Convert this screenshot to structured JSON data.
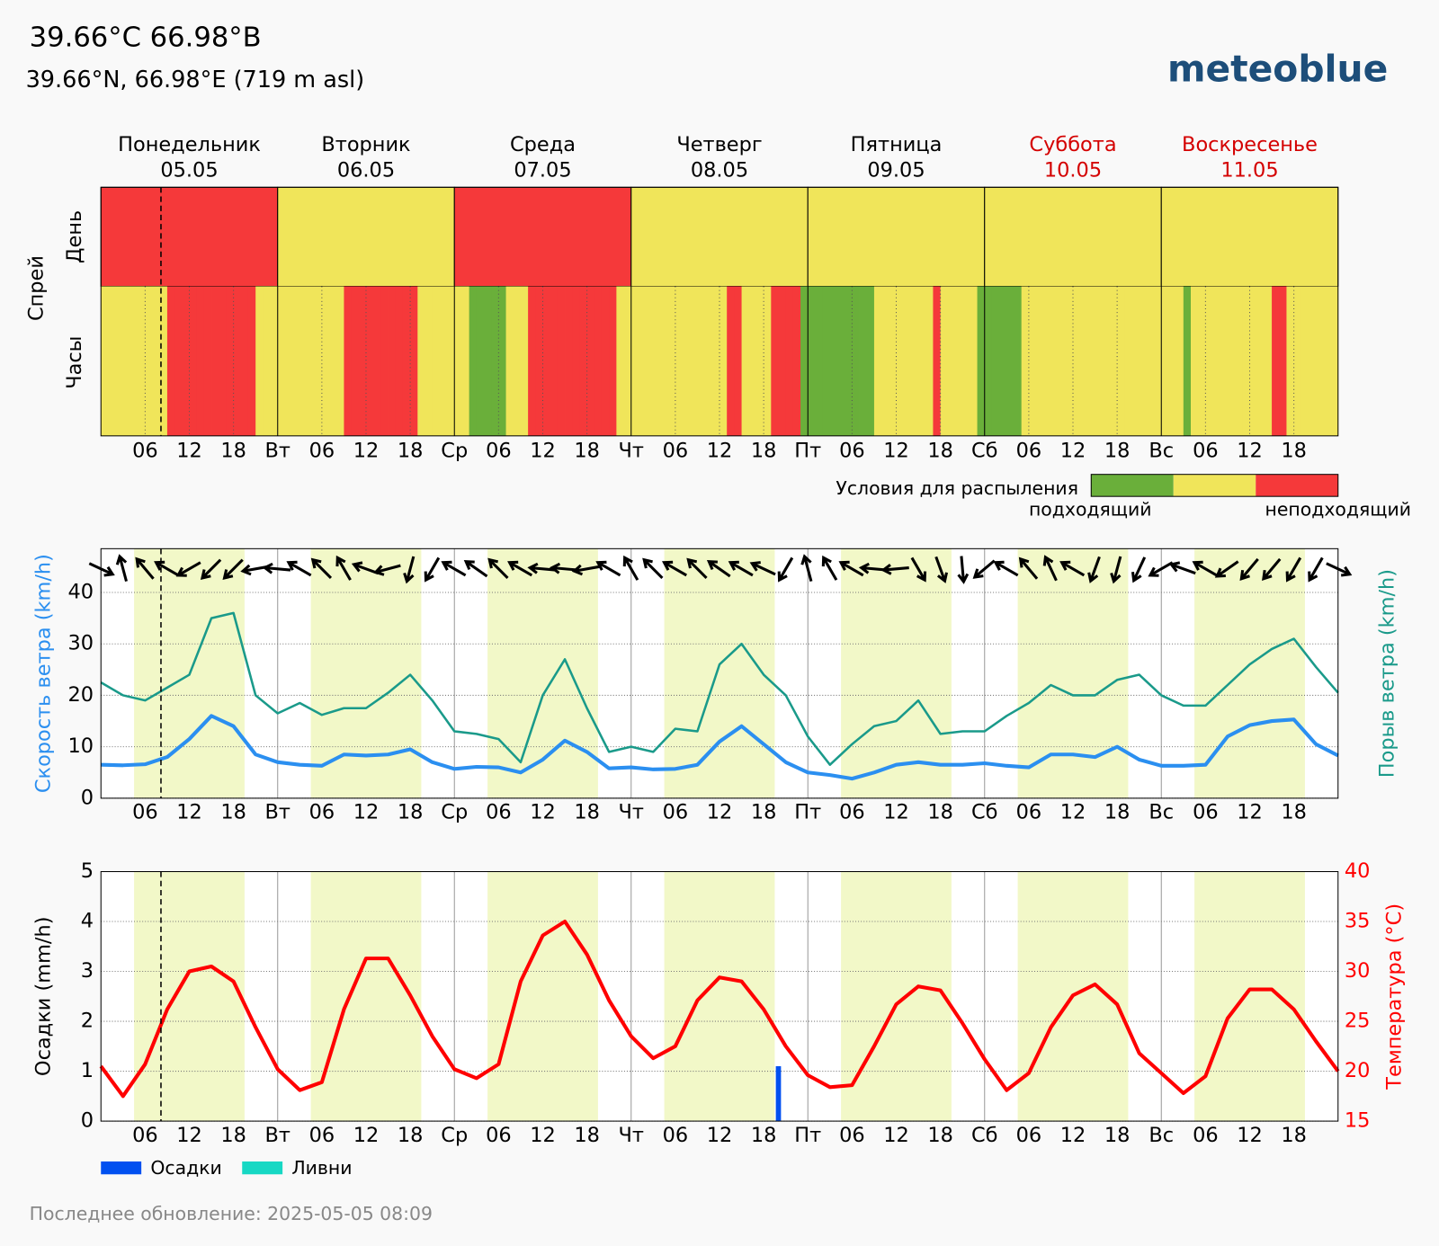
{
  "header": {
    "title": "39.66°C 66.98°B",
    "subtitle": "39.66°N, 66.98°E (719 m asl)",
    "logo": "meteoblue"
  },
  "footer": "Последнее обновление: 2025-05-05 08:09",
  "days": [
    {
      "name": "Понедельник",
      "date": "05.05",
      "color": "#000000"
    },
    {
      "name": "Вторник",
      "date": "06.05",
      "color": "#000000"
    },
    {
      "name": "Среда",
      "date": "07.05",
      "color": "#000000"
    },
    {
      "name": "Четверг",
      "date": "08.05",
      "color": "#000000"
    },
    {
      "name": "Пятница",
      "date": "09.05",
      "color": "#000000"
    },
    {
      "name": "Суббота",
      "date": "10.05",
      "color": "#d40000"
    },
    {
      "name": "Воскресенье",
      "date": "11.05",
      "color": "#d40000"
    }
  ],
  "x_axis": {
    "xlim": [
      0,
      168
    ],
    "xticks": [
      {
        "value": 6,
        "label": "06"
      },
      {
        "value": 12,
        "label": "12"
      },
      {
        "value": 18,
        "label": "18"
      },
      {
        "value": 24,
        "label": "Вт"
      },
      {
        "value": 30,
        "label": "06"
      },
      {
        "value": 36,
        "label": "12"
      },
      {
        "value": 42,
        "label": "18"
      },
      {
        "value": 48,
        "label": "Ср"
      },
      {
        "value": 54,
        "label": "06"
      },
      {
        "value": 60,
        "label": "12"
      },
      {
        "value": 66,
        "label": "18"
      },
      {
        "value": 72,
        "label": "Чт"
      },
      {
        "value": 78,
        "label": "06"
      },
      {
        "value": 84,
        "label": "12"
      },
      {
        "value": 90,
        "label": "18"
      },
      {
        "value": 96,
        "label": "Пт"
      },
      {
        "value": 102,
        "label": "06"
      },
      {
        "value": 108,
        "label": "12"
      },
      {
        "value": 114,
        "label": "18"
      },
      {
        "value": 120,
        "label": "Сб"
      },
      {
        "value": 126,
        "label": "06"
      },
      {
        "value": 132,
        "label": "12"
      },
      {
        "value": 138,
        "label": "18"
      },
      {
        "value": 144,
        "label": "Вс"
      },
      {
        "value": 150,
        "label": "06"
      },
      {
        "value": 156,
        "label": "12"
      },
      {
        "value": 162,
        "label": "18"
      }
    ]
  },
  "now": 8.15,
  "daylight": [
    4.5,
    19.5
  ],
  "chart_data": [
    {
      "type": "spray",
      "title": "Спрей",
      "row_labels": [
        "День",
        "Часы"
      ],
      "level_colors": [
        "#6aaf3a",
        "#f0e55a",
        "#f5393a"
      ],
      "day_values": [
        2,
        1,
        2,
        1,
        1,
        1,
        1
      ],
      "hour_values": [
        1,
        1,
        1,
        1,
        1,
        1,
        1,
        1,
        1,
        2,
        2,
        2,
        2,
        2,
        2,
        2,
        2,
        2,
        2,
        2,
        2,
        1,
        1,
        1,
        1,
        1,
        1,
        1,
        1,
        1,
        1,
        1,
        1,
        2,
        2,
        2,
        2,
        2,
        2,
        2,
        2,
        2,
        2,
        1,
        1,
        1,
        1,
        1,
        1,
        1,
        0,
        0,
        0,
        0,
        0,
        1,
        1,
        1,
        2,
        2,
        2,
        2,
        2,
        2,
        2,
        2,
        2,
        2,
        2,
        2,
        1,
        1,
        1,
        1,
        1,
        1,
        1,
        1,
        1,
        1,
        1,
        1,
        1,
        1,
        1,
        2,
        2,
        1,
        1,
        1,
        1,
        2,
        2,
        2,
        2,
        0,
        0,
        0,
        0,
        0,
        0,
        0,
        0,
        0,
        0,
        1,
        1,
        1,
        1,
        1,
        1,
        1,
        1,
        2,
        1,
        1,
        1,
        1,
        1,
        0,
        0,
        0,
        0,
        0,
        0,
        1,
        1,
        1,
        1,
        1,
        1,
        1,
        1,
        1,
        1,
        1,
        1,
        1,
        1,
        1,
        1,
        1,
        1,
        1,
        1,
        1,
        1,
        0,
        1,
        1,
        1,
        1,
        1,
        1,
        1,
        1,
        1,
        1,
        1,
        2,
        2,
        1,
        1,
        1,
        1,
        1,
        1,
        1
      ],
      "legend_title": "Условия для распыления",
      "legend_labels": [
        "подходящий",
        "неподходящий"
      ]
    },
    {
      "type": "wind",
      "x": [
        0,
        3,
        6,
        9,
        12,
        15,
        18,
        21,
        24,
        27,
        30,
        33,
        36,
        39,
        42,
        45,
        48,
        51,
        54,
        57,
        60,
        63,
        66,
        69,
        72,
        75,
        78,
        81,
        84,
        87,
        90,
        93,
        96,
        99,
        102,
        105,
        108,
        111,
        114,
        117,
        120,
        123,
        126,
        129,
        132,
        135,
        138,
        141,
        144,
        147,
        150,
        153,
        156,
        159,
        162,
        165,
        168
      ],
      "ylim": [
        0,
        48.5
      ],
      "yticks": [
        0,
        10,
        20,
        30,
        40
      ],
      "grid": true,
      "series": [
        {
          "name": "Скорость ветра (km/h)",
          "color": "#2b8ff0",
          "values": [
            6.5,
            6.4,
            6.6,
            8.0,
            11.5,
            16.0,
            14.0,
            8.5,
            7.0,
            6.5,
            6.3,
            8.5,
            8.3,
            8.5,
            9.5,
            7.0,
            5.7,
            6.1,
            6.0,
            5.0,
            7.5,
            11.2,
            9.0,
            5.8,
            6.0,
            5.6,
            5.7,
            6.5,
            11.0,
            14.0,
            10.5,
            7.0,
            5.0,
            4.5,
            3.8,
            5.0,
            6.5,
            7.0,
            6.5,
            6.5,
            6.8,
            6.3,
            6.0,
            8.5,
            8.5,
            8.0,
            10.0,
            7.5,
            6.3,
            6.3,
            6.5,
            12.0,
            14.2,
            15.0,
            15.3,
            10.5,
            8.3
          ]
        },
        {
          "name": "Порыв ветра (km/h)",
          "color": "#1a9a8a",
          "values": [
            22.5,
            20.0,
            19.0,
            21.5,
            24.0,
            35.0,
            36.0,
            20.0,
            16.5,
            18.5,
            16.2,
            17.5,
            17.5,
            20.5,
            24.0,
            19.0,
            13.0,
            12.5,
            11.5,
            7.0,
            20.0,
            27.0,
            17.5,
            9.0,
            10.0,
            9.0,
            13.5,
            13.0,
            26.0,
            30.0,
            24.0,
            20.0,
            12.0,
            6.5,
            10.5,
            14.0,
            15.0,
            19.0,
            12.5,
            13.0,
            13.0,
            16.0,
            18.5,
            22.0,
            20.0,
            20.0,
            23.0,
            24.0,
            20.0,
            18.0,
            18.0,
            22.0,
            26.0,
            29.0,
            31.0,
            25.5,
            20.5
          ]
        }
      ],
      "directions": [
        115,
        345,
        320,
        300,
        240,
        225,
        225,
        260,
        275,
        300,
        315,
        330,
        290,
        255,
        195,
        210,
        300,
        305,
        315,
        300,
        275,
        275,
        260,
        300,
        330,
        315,
        300,
        315,
        305,
        300,
        295,
        210,
        345,
        330,
        300,
        275,
        265,
        150,
        160,
        175,
        230,
        300,
        320,
        335,
        300,
        200,
        195,
        205,
        240,
        290,
        300,
        235,
        220,
        220,
        210,
        210,
        115
      ]
    },
    {
      "type": "precip_temp",
      "x": [
        0,
        3,
        6,
        9,
        12,
        15,
        18,
        21,
        24,
        27,
        30,
        33,
        36,
        39,
        42,
        45,
        48,
        51,
        54,
        57,
        60,
        63,
        66,
        69,
        72,
        75,
        78,
        81,
        84,
        87,
        90,
        93,
        96,
        99,
        102,
        105,
        108,
        111,
        114,
        117,
        120,
        123,
        126,
        129,
        132,
        135,
        138,
        141,
        144,
        147,
        150,
        153,
        156,
        159,
        162,
        165,
        168
      ],
      "ylabel": "Осадки (mm/h)",
      "ylim": [
        0,
        5
      ],
      "yticks": [
        0,
        1,
        2,
        3,
        4,
        5
      ],
      "grid": true,
      "y2label": "Температура (°C)",
      "y2lim": [
        15,
        40
      ],
      "y2ticks": [
        15,
        20,
        25,
        30,
        35,
        40
      ],
      "y2color": "#ff0000",
      "bars": [
        {
          "name": "Осадки",
          "color": "#0050f0",
          "x": [
            92
          ],
          "values": [
            1.1
          ]
        },
        {
          "name": "Ливни",
          "color": "#17d8c4",
          "x": [],
          "values": []
        }
      ],
      "series": [
        {
          "name": "Температура (°C)",
          "color": "#ff0000",
          "axis": "y2",
          "values": [
            20.5,
            17.5,
            20.7,
            26.2,
            30.0,
            30.5,
            29.0,
            24.4,
            20.2,
            18.1,
            18.9,
            26.2,
            31.3,
            31.3,
            27.6,
            23.5,
            20.2,
            19.3,
            20.7,
            29.0,
            33.6,
            35.0,
            31.7,
            27.1,
            23.5,
            21.3,
            22.5,
            27.1,
            29.4,
            29.0,
            26.2,
            22.5,
            19.6,
            18.4,
            18.6,
            22.5,
            26.7,
            28.5,
            28.1,
            24.8,
            21.2,
            18.1,
            19.8,
            24.4,
            27.6,
            28.7,
            26.7,
            21.8,
            19.8,
            17.8,
            19.5,
            25.3,
            28.2,
            28.2,
            26.2,
            23.0,
            20.0
          ]
        }
      ]
    }
  ]
}
